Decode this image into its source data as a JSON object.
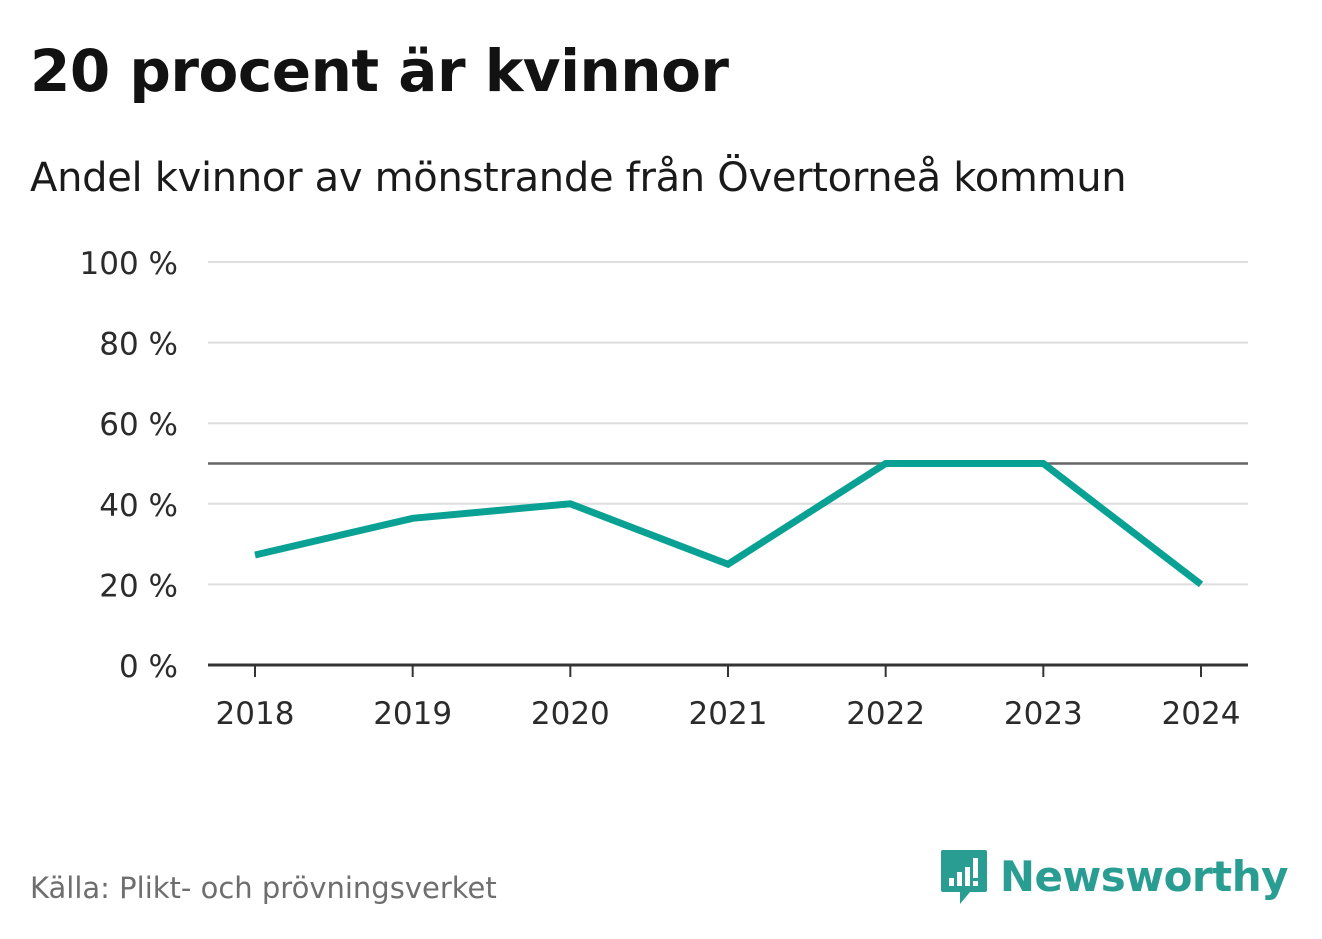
{
  "chart_data": {
    "type": "line",
    "title": "20 procent är kvinnor",
    "subtitle": "Andel kvinnor av mönstrande från Övertorneå kommun",
    "x": [
      "2018",
      "2019",
      "2020",
      "2021",
      "2022",
      "2023",
      "2024"
    ],
    "series": [
      {
        "values": [
          27.3,
          36.4,
          40,
          25,
          50,
          50,
          20
        ]
      }
    ],
    "y_ticks": [
      0,
      20,
      40,
      60,
      80,
      100
    ],
    "y_tick_suffix": " %",
    "ylim": [
      0,
      100
    ],
    "reference_line": 50,
    "grid": true,
    "colors": {
      "line": "#0aa195",
      "grid": "#dedede",
      "reference": "#666666",
      "axis": "#333333",
      "brand": "#2a9d92"
    }
  },
  "source": "Källa: Plikt- och prövningsverket",
  "brand": {
    "name": "Newsworthy",
    "icon": "newsworthy-logo-icon"
  }
}
